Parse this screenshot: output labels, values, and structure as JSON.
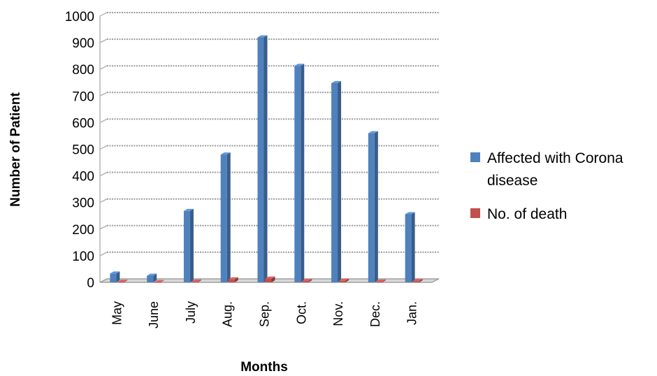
{
  "chart_data": {
    "type": "bar",
    "title": "",
    "xlabel": "Months",
    "ylabel": "Number of Patient",
    "ylim": [
      0,
      1000
    ],
    "yticks": [
      0,
      100,
      200,
      300,
      400,
      500,
      600,
      700,
      800,
      900,
      1000
    ],
    "categories": [
      "May",
      "June",
      "July",
      "Aug.",
      "Sep.",
      "Oct.",
      "Nov.",
      "Dec.",
      "Jan."
    ],
    "series": [
      {
        "name": "Affected with Corona disease",
        "legend_lines": [
          "Affected with Corona",
          "disease"
        ],
        "color": "#4f81bd",
        "values": [
          33,
          25,
          268,
          480,
          920,
          813,
          748,
          560,
          256
        ]
      },
      {
        "name": "No. of death",
        "legend_lines": [
          "No. of death"
        ],
        "color": "#c0504d",
        "values": [
          2,
          1,
          3,
          11,
          14,
          5,
          6,
          3,
          5
        ]
      }
    ],
    "grid": true,
    "legend_position": "right"
  }
}
